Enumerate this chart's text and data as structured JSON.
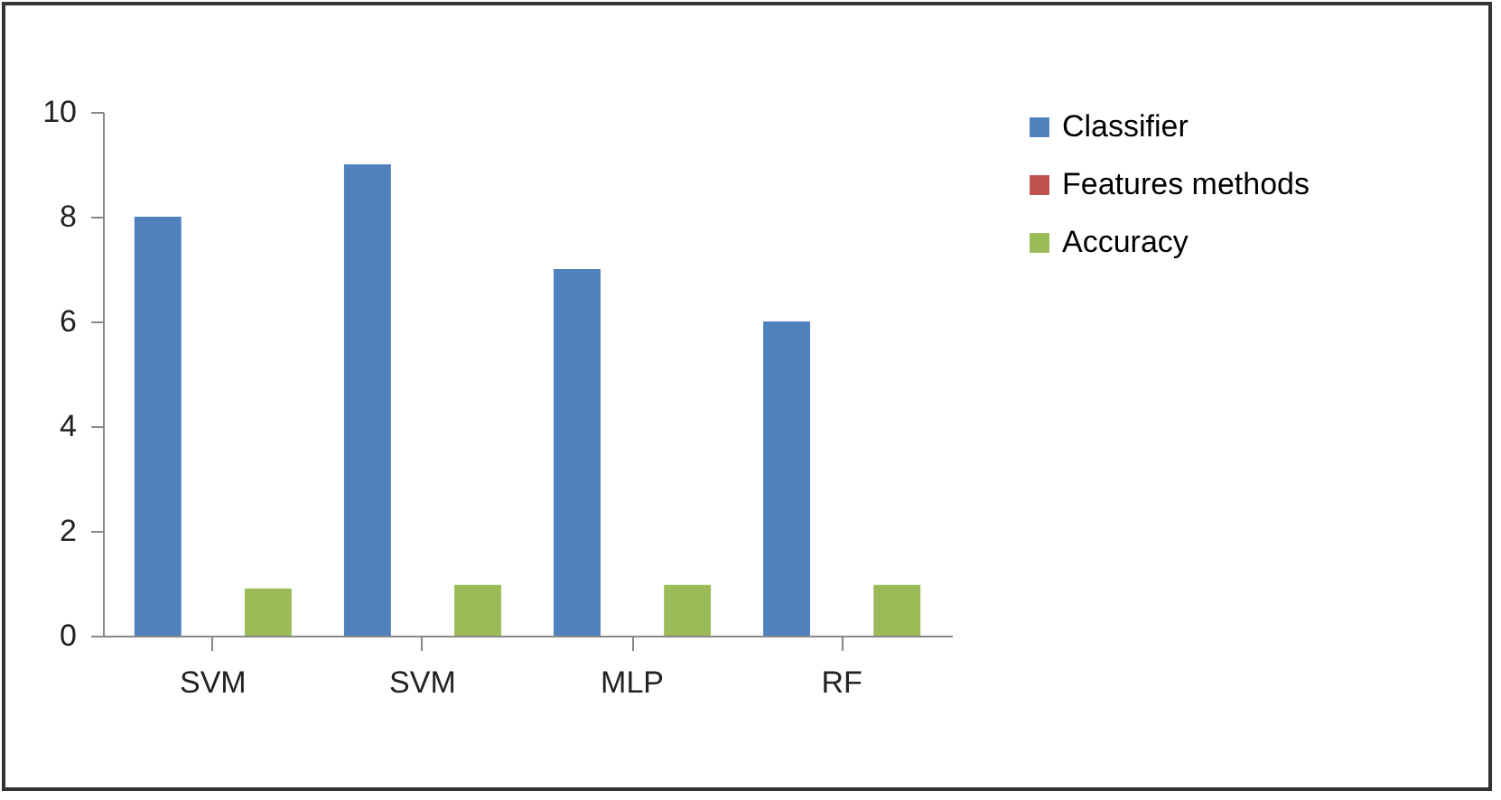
{
  "chart_data": {
    "type": "bar",
    "categories": [
      "SVM",
      "SVM",
      "MLP",
      "RF"
    ],
    "series": [
      {
        "name": "Classifier",
        "color": "#4f81bd",
        "values": [
          8,
          9,
          7,
          6
        ]
      },
      {
        "name": "Features methods",
        "color": "#c0504d",
        "values": [
          0,
          0,
          0,
          0
        ]
      },
      {
        "name": "Accuracy",
        "color": "#9bbb59",
        "values": [
          0.9,
          0.97,
          0.97,
          0.97
        ]
      }
    ],
    "ylim": [
      0,
      10
    ],
    "yticks": [
      0,
      2,
      4,
      6,
      8,
      10
    ],
    "grid": false,
    "legend": "right"
  }
}
